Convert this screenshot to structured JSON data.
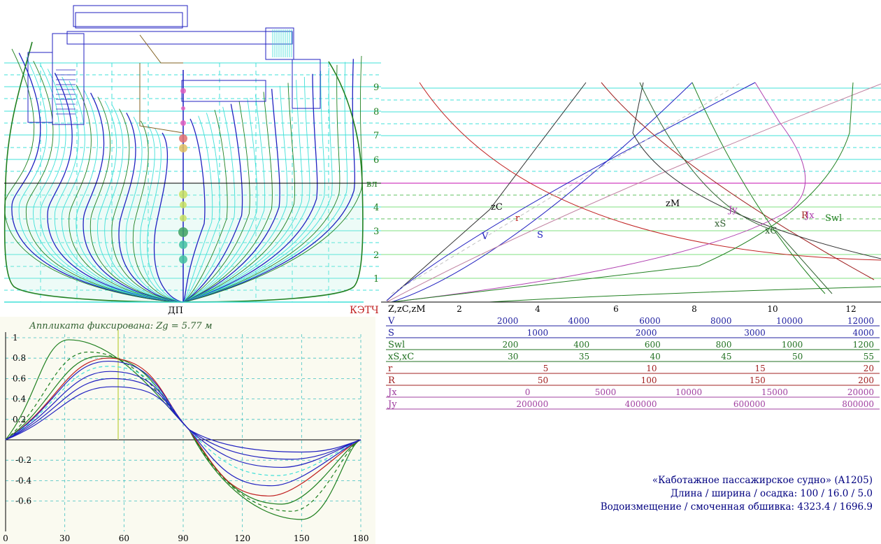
{
  "body_plan": {
    "wl_labels": [
      "1",
      "2",
      "3",
      "4",
      "вл",
      "6",
      "7",
      "8",
      "9"
    ],
    "dp_label": "ДП",
    "ketch_label": "КЭТЧ"
  },
  "stability": {
    "caption": "Аппликата фиксирована: Zg = 5.77 м",
    "y_ticks": [
      "1",
      "0.8",
      "0.6",
      "0.4",
      "0.2",
      "-0.2",
      "-0.4",
      "-0.6"
    ],
    "x_ticks": [
      "0",
      "30",
      "60",
      "90",
      "120",
      "150",
      "180"
    ]
  },
  "hydrostatics": {
    "z_ticks": [
      "2",
      "4",
      "6",
      "8",
      "10",
      "12"
    ],
    "curve_labels": [
      "zC",
      "r",
      "V",
      "S",
      "zM",
      "Jy",
      "xS",
      "xC",
      "R",
      "Jx",
      "Swl"
    ],
    "scales": [
      {
        "name": "Z,zC,zM",
        "ticks": [],
        "color": "#000000"
      },
      {
        "name": "V",
        "ticks": [
          "2000",
          "4000",
          "6000",
          "8000",
          "10000",
          "12000"
        ],
        "color": "#2020a0"
      },
      {
        "name": "S",
        "ticks": [
          "1000",
          "2000",
          "3000",
          "4000"
        ],
        "color": "#2020a0"
      },
      {
        "name": "Swl",
        "ticks": [
          "200",
          "400",
          "600",
          "800",
          "1000",
          "1200"
        ],
        "color": "#207020"
      },
      {
        "name": "xS,xC",
        "ticks": [
          "30",
          "35",
          "40",
          "45",
          "50",
          "55"
        ],
        "color": "#207020"
      },
      {
        "name": "r",
        "ticks": [
          "5",
          "10",
          "15",
          "20"
        ],
        "color": "#a02020"
      },
      {
        "name": "R",
        "ticks": [
          "50",
          "100",
          "150",
          "200"
        ],
        "color": "#a02020"
      },
      {
        "name": "Jx",
        "ticks": [
          "0",
          "5000",
          "10000",
          "15000",
          "20000"
        ],
        "color": "#a040a0"
      },
      {
        "name": "Jy",
        "ticks": [
          "200000",
          "400000",
          "600000",
          "800000"
        ],
        "color": "#a040a0"
      }
    ]
  },
  "info": {
    "line1": "«Каботажное пассажирское судно» (A1205)",
    "line2": "Длина / ширина / осадка:  100 / 16.0 / 5.0",
    "line3": "Водоизмещение / смоченная обшивка:  4323.4 / 1696.9"
  },
  "colors": {
    "cyan": "#40e0d8",
    "blue": "#2020c0",
    "green": "#208020",
    "red": "#c02020",
    "magenta": "#b040b0",
    "panel": "#fafaf0"
  }
}
